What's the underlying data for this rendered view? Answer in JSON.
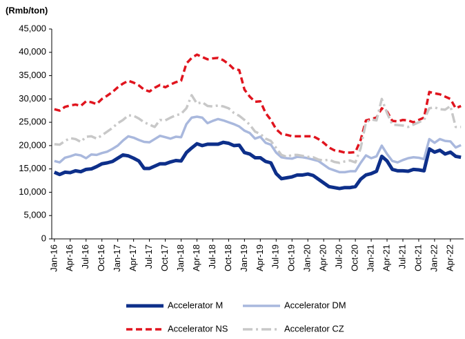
{
  "chart_data": {
    "type": "line",
    "y_label": "(Rmb/ton)",
    "categories": [
      "Jan-16",
      null,
      null,
      "Apr-16",
      null,
      null,
      "Jul-16",
      null,
      null,
      "Oct-16",
      null,
      null,
      "Jan-17",
      null,
      null,
      "Apr-17",
      null,
      null,
      "Jul-17",
      null,
      null,
      "Oct-17",
      null,
      null,
      "Jan-18",
      null,
      null,
      "Apr-18",
      null,
      null,
      "Jul-18",
      null,
      null,
      "Oct-18",
      null,
      null,
      "Jan-19",
      null,
      null,
      "Apr-19",
      null,
      null,
      "Jul-19",
      null,
      null,
      "Oct-19",
      null,
      null,
      "Jan-20",
      null,
      null,
      "Apr-20",
      null,
      null,
      "Jul-20",
      null,
      null,
      "Oct-20",
      null,
      null,
      "Jan-21",
      null,
      null,
      "Apr-21",
      null,
      null,
      "Jul-21",
      null,
      null,
      "Oct-21",
      null,
      null,
      "Jan-22",
      null,
      null,
      "Apr-22",
      null,
      null
    ],
    "series": [
      {
        "name": "Accelerator M",
        "color": "#0d2f8a",
        "style": "solid",
        "width": 5,
        "values": [
          14300,
          13800,
          14300,
          14200,
          14600,
          14400,
          14900,
          15000,
          15500,
          16100,
          16300,
          16600,
          17300,
          18000,
          17800,
          17300,
          16700,
          15100,
          15100,
          15600,
          16100,
          16100,
          16500,
          16800,
          16700,
          18500,
          19500,
          20400,
          20000,
          20300,
          20300,
          20300,
          20700,
          20500,
          20000,
          20100,
          18500,
          18200,
          17400,
          17400,
          16600,
          16300,
          14000,
          12900,
          13100,
          13300,
          13700,
          13700,
          13900,
          13600,
          12800,
          12000,
          11200,
          11000,
          10800,
          11000,
          11000,
          11200,
          12800,
          13700,
          14000,
          14500,
          17700,
          16700,
          14900,
          14600,
          14600,
          14500,
          14900,
          14800,
          14600,
          19300,
          18600,
          19000,
          18200,
          18600,
          17700,
          17500
        ]
      },
      {
        "name": "Accelerator DM",
        "color": "#a9b8dd",
        "style": "solid",
        "width": 3.5,
        "values": [
          16700,
          16400,
          17400,
          17700,
          18100,
          17900,
          17300,
          18100,
          18000,
          18400,
          18700,
          19300,
          20000,
          21100,
          22000,
          21700,
          21200,
          20800,
          20700,
          21400,
          22100,
          21800,
          21500,
          21900,
          21800,
          24600,
          26000,
          26200,
          26000,
          24800,
          25300,
          25700,
          25400,
          25000,
          24600,
          24100,
          23200,
          22700,
          21500,
          21900,
          20600,
          20200,
          18500,
          17500,
          17300,
          17200,
          17600,
          17500,
          17300,
          17000,
          16700,
          15900,
          15100,
          14700,
          14300,
          14300,
          14500,
          14500,
          16300,
          17900,
          17300,
          17700,
          20000,
          18200,
          16700,
          16400,
          16900,
          17300,
          17500,
          17400,
          17100,
          21400,
          20600,
          21400,
          21000,
          20900,
          19600,
          20100
        ]
      },
      {
        "name": "Accelerator NS",
        "color": "#e0141e",
        "style": "dashed",
        "width": 3.5,
        "values": [
          27800,
          27500,
          28300,
          28600,
          28800,
          28500,
          29500,
          29300,
          28900,
          30000,
          30700,
          31500,
          32500,
          33300,
          33900,
          33500,
          32900,
          32000,
          31600,
          32400,
          33000,
          32500,
          33100,
          33600,
          33900,
          37600,
          38800,
          39500,
          39000,
          38500,
          38700,
          38800,
          38300,
          37500,
          36400,
          36200,
          32000,
          30500,
          29400,
          29500,
          27000,
          25500,
          23500,
          22500,
          22300,
          22000,
          22000,
          22000,
          22000,
          22000,
          21400,
          20600,
          19600,
          19000,
          18800,
          18500,
          18500,
          18600,
          21200,
          25400,
          25700,
          26000,
          28000,
          27300,
          25300,
          25200,
          25500,
          25400,
          25000,
          25500,
          26000,
          31500,
          31200,
          31000,
          30500,
          30000,
          28000,
          28500
        ]
      },
      {
        "name": "Accelerator CZ",
        "color": "#c8c8c8",
        "style": "dash-dot",
        "width": 3.5,
        "values": [
          20300,
          20200,
          21000,
          21600,
          21400,
          20800,
          21900,
          22000,
          21500,
          22200,
          23000,
          23800,
          24800,
          25500,
          26500,
          26400,
          25800,
          25000,
          24500,
          24000,
          25500,
          25400,
          26000,
          26500,
          26800,
          28000,
          30800,
          29000,
          29300,
          28500,
          28400,
          28600,
          28400,
          28000,
          27000,
          26400,
          25500,
          24500,
          23000,
          22500,
          21500,
          21000,
          19500,
          18000,
          17600,
          18000,
          18000,
          17800,
          17600,
          17500,
          17000,
          16800,
          17000,
          16500,
          16300,
          16600,
          16800,
          16400,
          19400,
          25000,
          25600,
          25400,
          30000,
          27000,
          24500,
          24400,
          24300,
          24000,
          24500,
          25000,
          25500,
          28000,
          28200,
          27800,
          27700,
          28500,
          24000,
          24000
        ]
      }
    ],
    "ylim": [
      0,
      45000
    ],
    "yticks": [
      0,
      {
        "value": 5000,
        "label": "5,000"
      },
      {
        "value": 10000,
        "label": "10,000"
      },
      {
        "value": 15000,
        "label": "15,000"
      },
      {
        "value": 20000,
        "label": "20,000"
      },
      {
        "value": 25000,
        "label": "25,000"
      },
      {
        "value": 30000,
        "label": "30,000"
      },
      {
        "value": 35000,
        "label": "35,000"
      },
      {
        "value": 40000,
        "label": "40,000"
      },
      {
        "value": 45000,
        "label": "45,000"
      }
    ],
    "grid": false
  }
}
